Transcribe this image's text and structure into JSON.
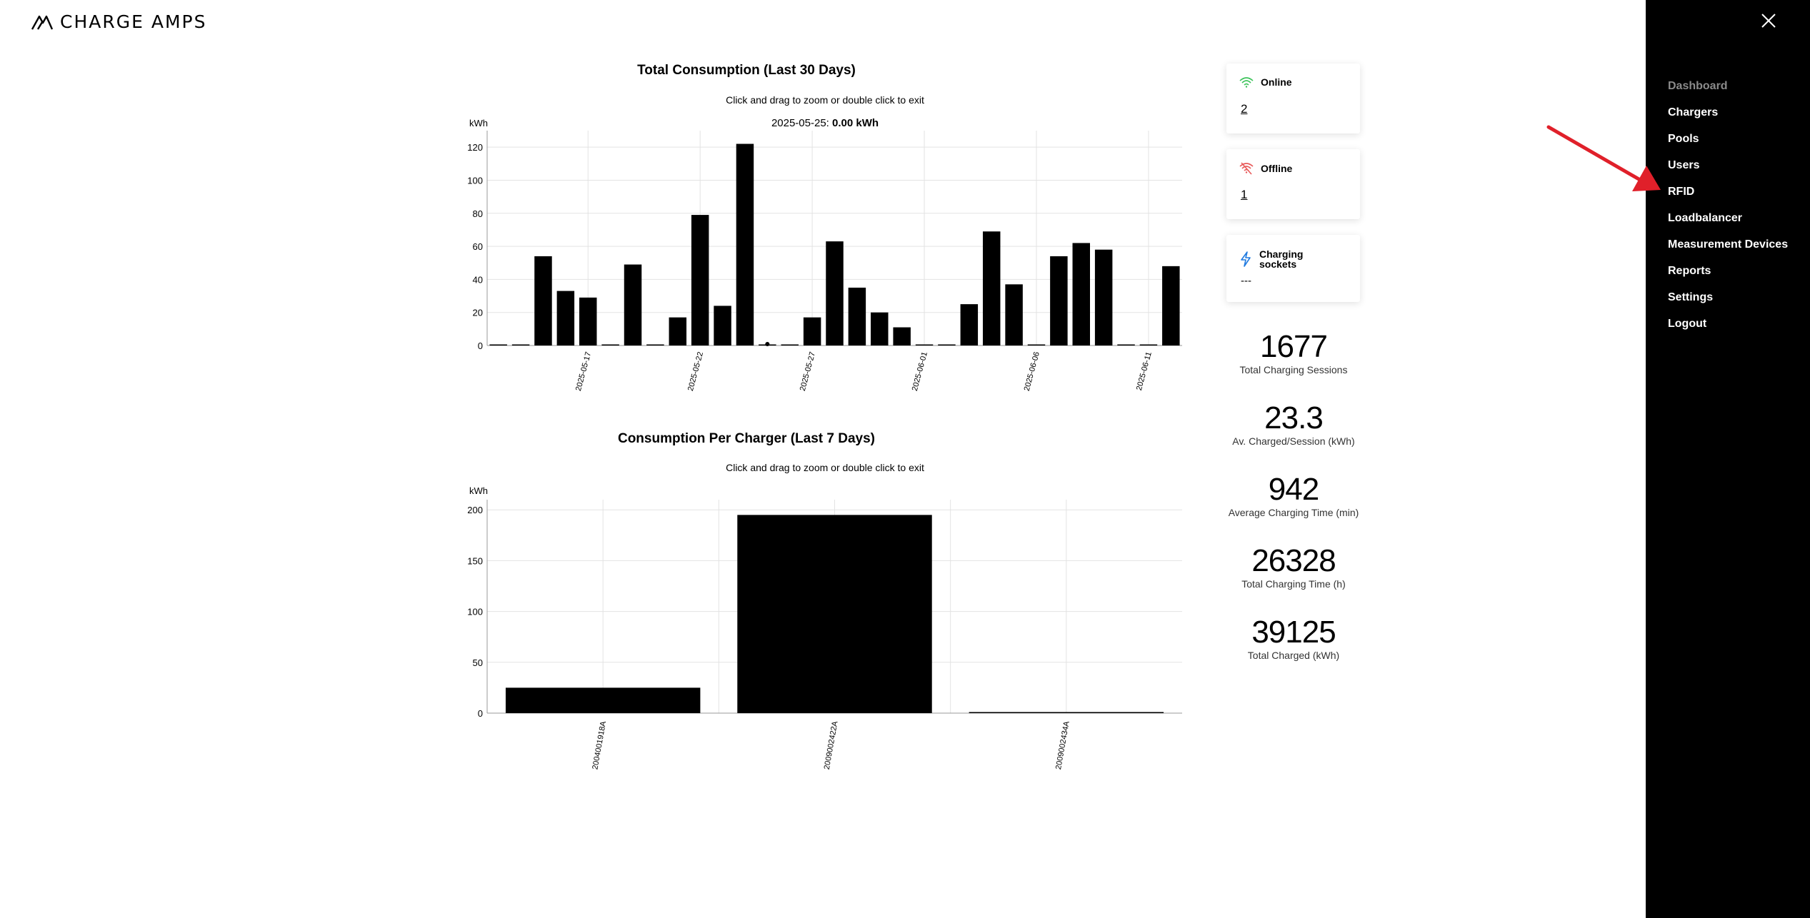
{
  "brand": {
    "name": "CHARGE AMPS"
  },
  "chart1": {
    "title": "Total Consumption (Last 30 Days)",
    "subtitle": "Click and drag to zoom or double click to exit",
    "tooltip_date": "2025-05-25: ",
    "tooltip_value": "0.00 kWh"
  },
  "chart2": {
    "title": "Consumption Per Charger (Last 7 Days)",
    "subtitle": "Click and drag to zoom or double click to exit"
  },
  "chart_data": [
    {
      "type": "bar",
      "title": "Total Consumption (Last 30 Days)",
      "ylabel": "kWh",
      "ylim": [
        0,
        130
      ],
      "yticks": [
        0,
        20,
        40,
        60,
        80,
        100,
        120
      ],
      "tick_labels": [
        "2025-05-17",
        "2025-05-22",
        "2025-05-27",
        "2025-06-01",
        "2025-06-06",
        "2025-06-11"
      ],
      "tick_indices": [
        4,
        9,
        14,
        19,
        24,
        29
      ],
      "categories": [
        "2025-05-13",
        "2025-05-14",
        "2025-05-15",
        "2025-05-16",
        "2025-05-17",
        "2025-05-18",
        "2025-05-19",
        "2025-05-20",
        "2025-05-21",
        "2025-05-22",
        "2025-05-23",
        "2025-05-24",
        "2025-05-25",
        "2025-05-26",
        "2025-05-27",
        "2025-05-28",
        "2025-05-29",
        "2025-05-30",
        "2025-05-31",
        "2025-06-01",
        "2025-06-02",
        "2025-06-03",
        "2025-06-04",
        "2025-06-05",
        "2025-06-06",
        "2025-06-07",
        "2025-06-08",
        "2025-06-09",
        "2025-06-10",
        "2025-06-11",
        "2025-06-12"
      ],
      "values": [
        0.5,
        0.5,
        54,
        33,
        29,
        0.5,
        49,
        0.5,
        17,
        79,
        24,
        122,
        0,
        0.5,
        17,
        63,
        35,
        20,
        11,
        0.5,
        0.5,
        25,
        69,
        37,
        0.5,
        54,
        62,
        58,
        0.5,
        0.5,
        48
      ],
      "grid": true,
      "legend": "none"
    },
    {
      "type": "bar",
      "title": "Consumption Per Charger (Last 7 Days)",
      "ylabel": "kWh",
      "ylim": [
        0,
        210
      ],
      "yticks": [
        0,
        50,
        100,
        150,
        200
      ],
      "categories": [
        "2004001918A",
        "2009002422A",
        "2009002434A"
      ],
      "values": [
        25,
        195,
        1
      ],
      "grid": true,
      "legend": "none"
    }
  ],
  "status": {
    "online": {
      "label": "Online",
      "value": "2",
      "icon": "wifi-icon",
      "color": "#3cc35a"
    },
    "offline": {
      "label": "Offline",
      "value": "1",
      "icon": "wifi-off-icon",
      "color": "#e85a5a"
    },
    "sockets": {
      "label1": "Charging",
      "label2": "sockets",
      "value": "---",
      "icon": "lightning-icon",
      "color": "#1f7ae0"
    }
  },
  "stats": [
    {
      "value": "1677",
      "label": "Total Charging Sessions"
    },
    {
      "value": "23.3",
      "label": "Av. Charged/Session (kWh)"
    },
    {
      "value": "942",
      "label": "Average Charging Time (min)"
    },
    {
      "value": "26328",
      "label": "Total Charging Time (h)"
    },
    {
      "value": "39125",
      "label": "Total Charged (kWh)"
    }
  ],
  "nav": {
    "items": [
      {
        "label": "Dashboard",
        "active": true
      },
      {
        "label": "Chargers"
      },
      {
        "label": "Pools"
      },
      {
        "label": "Users"
      },
      {
        "label": "RFID"
      },
      {
        "label": "Loadbalancer"
      },
      {
        "label": "Measurement Devices"
      },
      {
        "label": "Reports"
      },
      {
        "label": "Settings"
      },
      {
        "label": "Logout"
      }
    ]
  },
  "annotation": {
    "arrow_color": "#e0202a"
  }
}
